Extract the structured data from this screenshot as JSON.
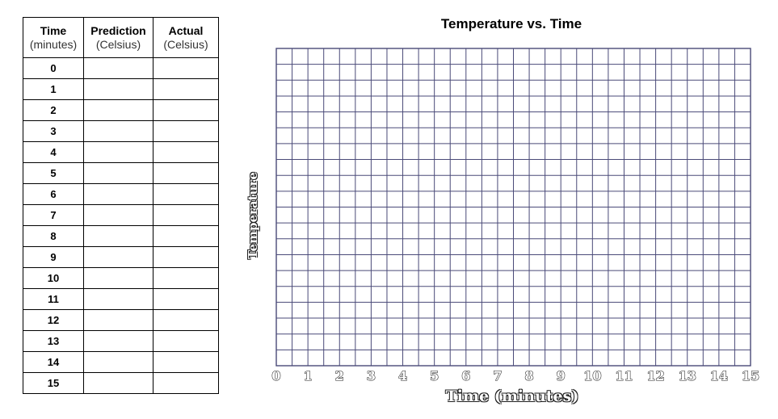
{
  "table": {
    "headers": [
      {
        "title": "Time",
        "unit": "(minutes)"
      },
      {
        "title": "Prediction",
        "unit": "(Celsius)"
      },
      {
        "title": "Actual",
        "unit": "(Celsius)"
      }
    ],
    "rows": [
      "0",
      "1",
      "2",
      "3",
      "4",
      "5",
      "6",
      "7",
      "8",
      "9",
      "10",
      "11",
      "12",
      "13",
      "14",
      "15"
    ]
  },
  "chart_data": {
    "type": "line",
    "title": "Temperature vs. Time",
    "xlabel": "Time (minutes)",
    "ylabel": "Temperature",
    "x_ticks": [
      "0",
      "1",
      "2",
      "3",
      "4",
      "5",
      "6",
      "7",
      "8",
      "9",
      "10",
      "11",
      "12",
      "13",
      "14",
      "15"
    ],
    "xlim": [
      0,
      15
    ],
    "series": [],
    "grid": true,
    "grid_color": "#4a4a78"
  }
}
